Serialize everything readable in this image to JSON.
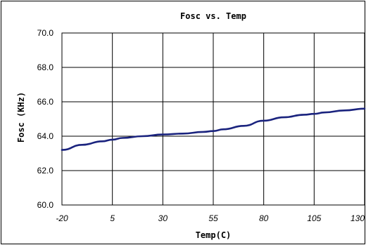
{
  "chart_data": {
    "type": "line",
    "title": "Fosc vs. Temp",
    "xlabel": "Temp(C)",
    "ylabel": "Fosc (KHz)",
    "x_ticks": [
      "-20",
      "5",
      "30",
      "55",
      "80",
      "105",
      "130"
    ],
    "y_ticks": [
      "60.0",
      "62.0",
      "64.0",
      "66.0",
      "68.0",
      "70.0"
    ],
    "xlim": [
      -20,
      130
    ],
    "ylim": [
      60,
      70
    ],
    "grid": true,
    "line_color": "#1a237e",
    "series": [
      {
        "x": [
          -20,
          -10,
          0,
          5,
          10,
          20,
          30,
          40,
          50,
          55,
          60,
          70,
          80,
          90,
          100,
          105,
          110,
          120,
          130
        ],
        "values": [
          63.2,
          63.5,
          63.7,
          63.8,
          63.9,
          64.0,
          64.1,
          64.15,
          64.25,
          64.3,
          64.4,
          64.6,
          64.9,
          65.1,
          65.25,
          65.3,
          65.38,
          65.5,
          65.6
        ]
      }
    ]
  }
}
